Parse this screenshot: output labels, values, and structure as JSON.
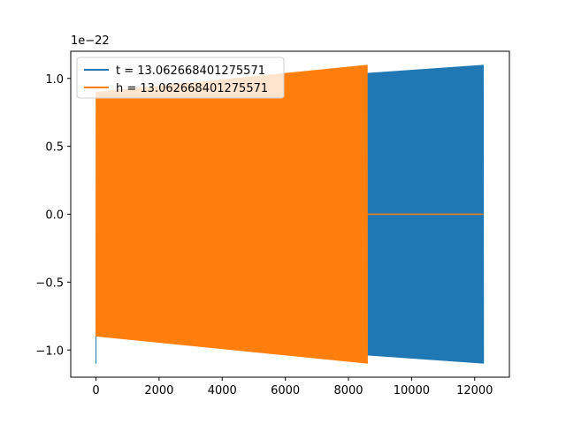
{
  "chart_data": {
    "type": "line",
    "title": "",
    "xlabel": "",
    "ylabel": "",
    "y_offset_text": "1e−22",
    "xlim": [
      -800,
      13100
    ],
    "ylim": [
      -1.2,
      1.2
    ],
    "xticks": [
      0,
      2000,
      4000,
      6000,
      8000,
      10000,
      12000
    ],
    "xtick_labels": [
      "0",
      "2000",
      "4000",
      "6000",
      "8000",
      "10000",
      "12000"
    ],
    "yticks": [
      -1.0,
      -0.5,
      0.0,
      0.5,
      1.0
    ],
    "ytick_labels": [
      "−1.0",
      "−0.5",
      "0.0",
      "0.5",
      "1.0"
    ],
    "grid": false,
    "legend_position": "top-left",
    "series": [
      {
        "name": "t = 13.062668401275571",
        "color": "#1f77b4",
        "x_range": [
          0,
          12280
        ],
        "envelope_start": 0.9,
        "envelope_end": 1.1,
        "start_amplitude": -1.1
      },
      {
        "name": "h = 13.062668401275571",
        "color": "#ff7f0e",
        "x_range": [
          0,
          8600
        ],
        "envelope_start": 0.9,
        "envelope_end": 1.1,
        "flat_after_x": 8600,
        "flat_until_x": 12280,
        "flat_value": 0.0
      }
    ]
  }
}
